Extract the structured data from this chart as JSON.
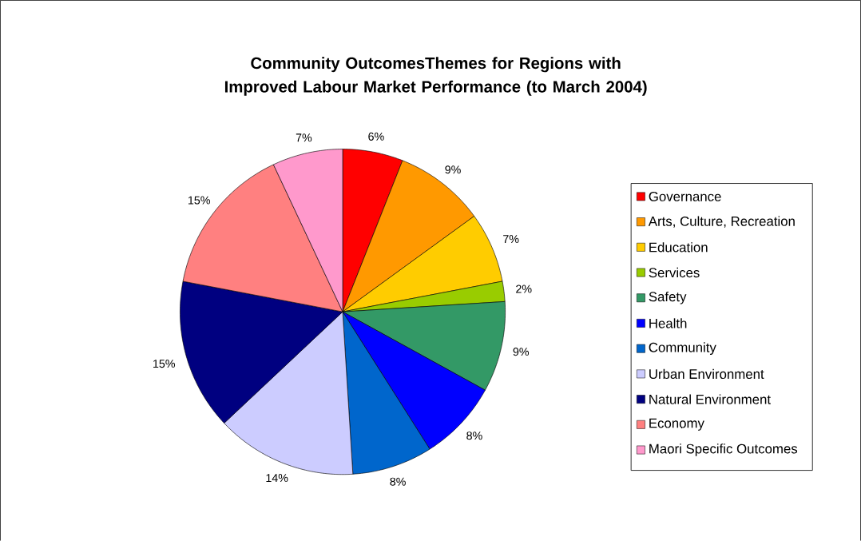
{
  "chart_data": {
    "type": "pie",
    "title": "Community OutcomesThemes for Regions with Improved Labour Market Performance (to March 2004)",
    "categories": [
      "Governance",
      "Arts, Culture, Recreation",
      "Education",
      "Services",
      "Safety",
      "Health",
      "Community",
      "Urban Environment",
      "Natural Environment",
      "Economy",
      "Maori Specific Outcomes"
    ],
    "values": [
      6,
      9,
      7,
      2,
      9,
      8,
      8,
      14,
      15,
      15,
      7
    ],
    "value_labels": [
      "6%",
      "9%",
      "7%",
      "2%",
      "9%",
      "8%",
      "8%",
      "14%",
      "15%",
      "15%",
      "7%"
    ],
    "colors": [
      "#ff0000",
      "#ff9900",
      "#ffcc00",
      "#99cc00",
      "#339966",
      "#0000ff",
      "#0066cc",
      "#ccccff",
      "#000080",
      "#ff8080",
      "#ff99cc"
    ],
    "legend": "right"
  }
}
